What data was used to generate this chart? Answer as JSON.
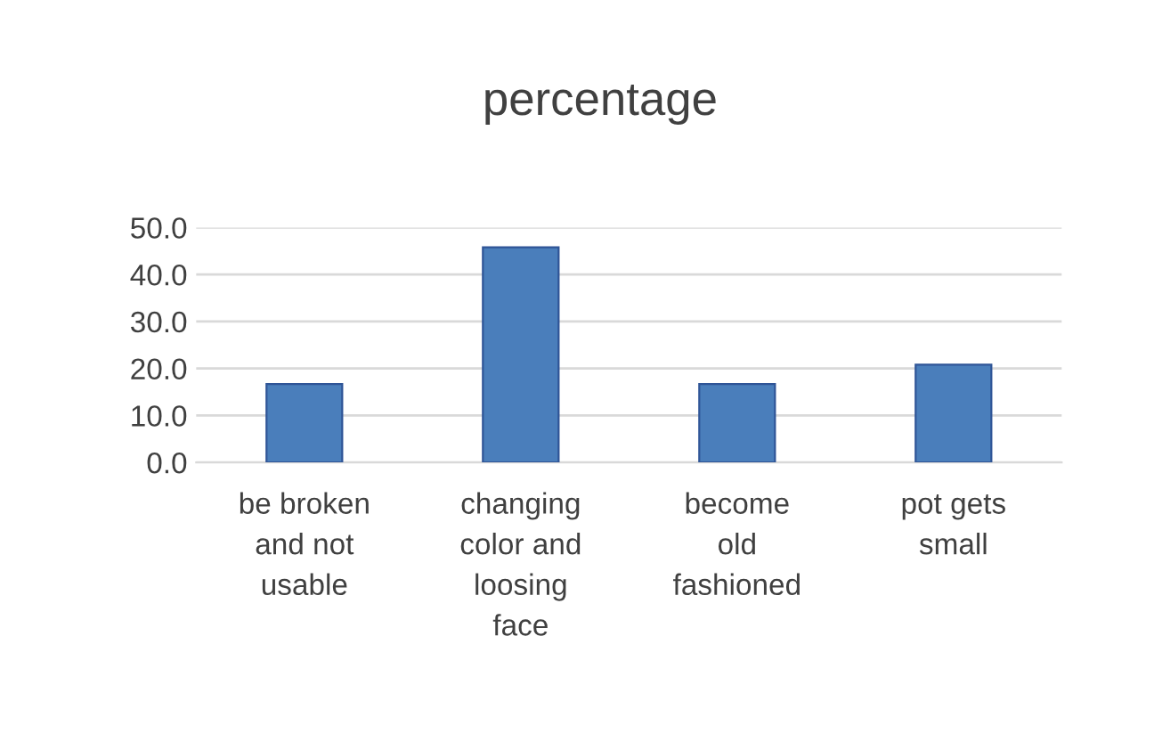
{
  "chart_data": {
    "type": "bar",
    "title": "percentage",
    "categories": [
      "be broken\nand not\nusable",
      "changing\ncolor and\nloosing\nface",
      "become\nold\nfashioned",
      "pot gets\nsmall"
    ],
    "values": [
      16.7,
      45.8,
      16.7,
      20.8
    ],
    "color": "#4a7ebb",
    "ylim": [
      0,
      50
    ],
    "yticks": [
      {
        "value": 0,
        "label": "0.0"
      },
      {
        "value": 10,
        "label": "10.0"
      },
      {
        "value": 20,
        "label": "20.0"
      },
      {
        "value": 30,
        "label": "30.0"
      },
      {
        "value": 40,
        "label": "40.0"
      },
      {
        "value": 50,
        "label": "50.0"
      }
    ],
    "grid": "y",
    "legend": false
  }
}
